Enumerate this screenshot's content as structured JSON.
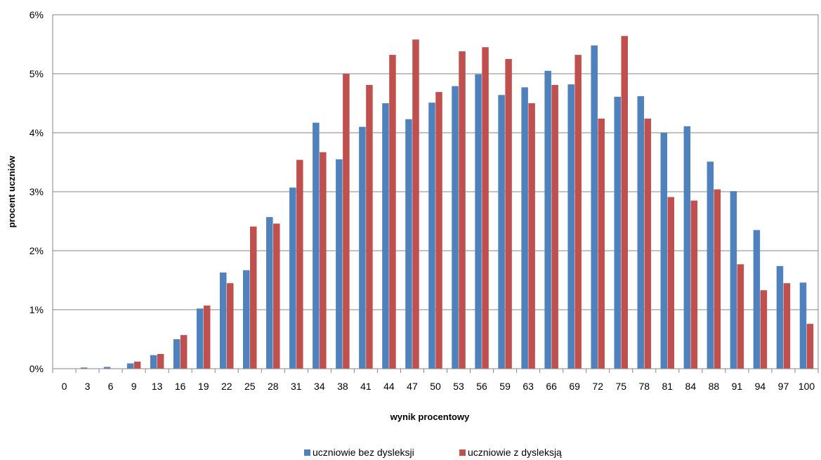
{
  "chart_data": {
    "type": "bar",
    "xlabel": "wynik procentowy",
    "ylabel": "procent  uczniów",
    "ylim": [
      0,
      6
    ],
    "yticks": [
      "0%",
      "1%",
      "2%",
      "3%",
      "4%",
      "5%",
      "6%"
    ],
    "grid": true,
    "legend_position": "bottom",
    "categories": [
      "0",
      "3",
      "6",
      "9",
      "13",
      "16",
      "19",
      "22",
      "25",
      "28",
      "31",
      "34",
      "38",
      "41",
      "44",
      "47",
      "50",
      "53",
      "56",
      "59",
      "63",
      "66",
      "69",
      "72",
      "75",
      "78",
      "81",
      "84",
      "88",
      "91",
      "94",
      "97",
      "100"
    ],
    "series": [
      {
        "name": "uczniowie bez dysleksji",
        "color": "#4F81BD",
        "values": [
          0.0,
          0.02,
          0.03,
          0.09,
          0.23,
          0.5,
          1.02,
          1.63,
          1.67,
          2.57,
          3.07,
          4.17,
          3.55,
          4.1,
          4.5,
          4.23,
          4.51,
          4.79,
          4.99,
          4.64,
          4.77,
          5.05,
          4.82,
          5.48,
          4.61,
          4.62,
          4.0,
          4.11,
          3.51,
          3.01,
          2.35,
          1.74,
          1.46
        ]
      },
      {
        "name": "uczniowie z dysleksją",
        "color": "#C0504D",
        "values": [
          0.0,
          0.0,
          0.0,
          0.12,
          0.25,
          0.57,
          1.07,
          1.45,
          2.41,
          2.46,
          3.54,
          3.67,
          5.0,
          4.81,
          5.32,
          5.58,
          4.69,
          5.38,
          5.45,
          5.25,
          4.5,
          4.81,
          5.32,
          4.24,
          5.64,
          4.24,
          2.91,
          2.85,
          3.04,
          1.77,
          1.33,
          1.45,
          0.76
        ]
      }
    ]
  }
}
